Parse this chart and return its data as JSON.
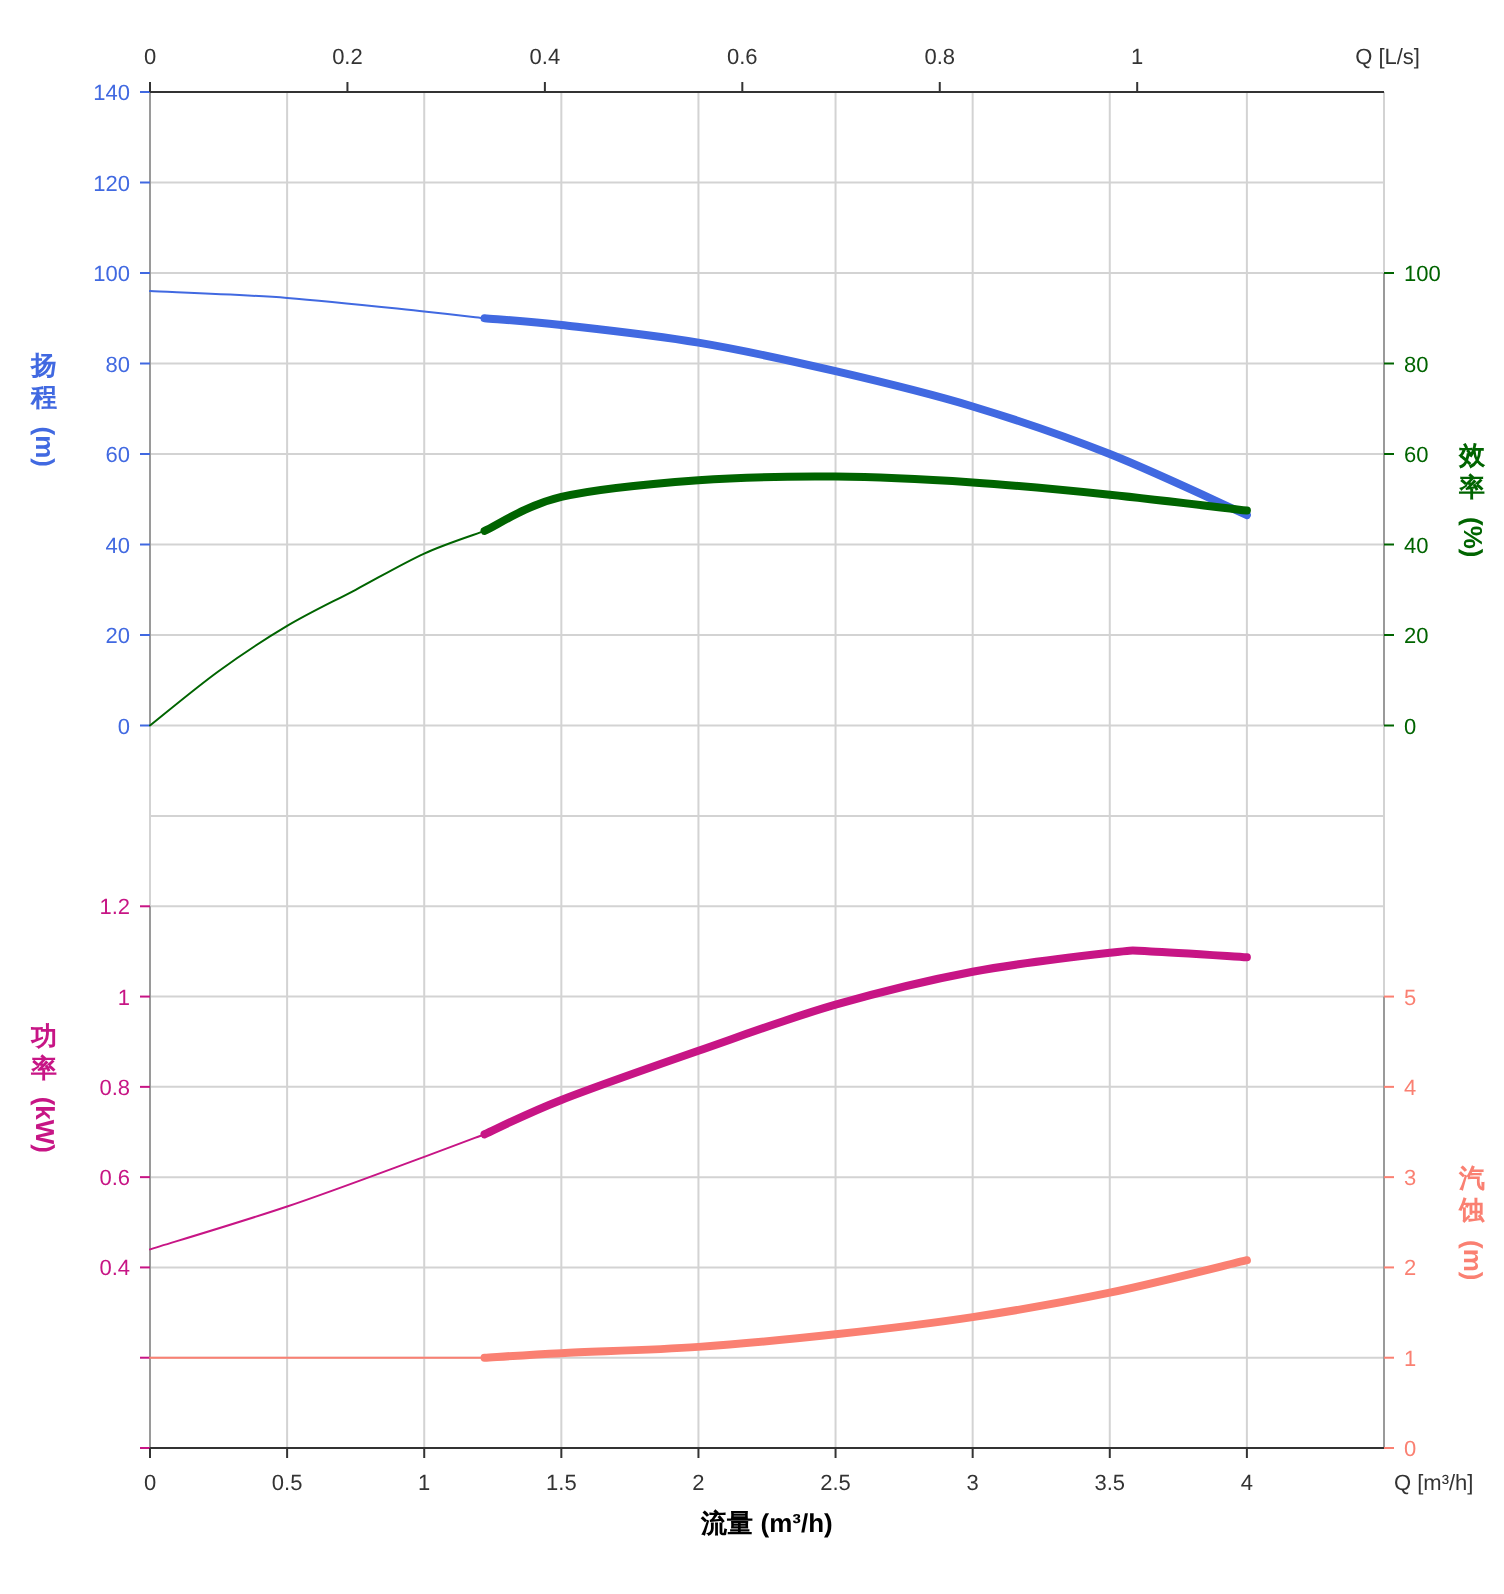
{
  "chart_data": [
    {
      "type": "line",
      "ylabel": "扬程 (m)",
      "y2label": "效率 (%)",
      "x2label": "Q [L/s]",
      "xlim": [
        0,
        4.5
      ],
      "xticks": [
        0,
        0.5,
        1,
        1.5,
        2,
        2.5,
        3,
        3.5,
        4
      ],
      "x2lim": [
        0,
        1.25
      ],
      "x2ticks": [
        0,
        0.2,
        0.4,
        0.6,
        0.8,
        1
      ],
      "ylim": [
        -20,
        140
      ],
      "yticks": [
        0,
        20,
        40,
        60,
        80,
        100,
        120,
        140
      ],
      "y2lim": [
        -20,
        140
      ],
      "y2ticks": [
        0,
        20,
        40,
        60,
        80,
        100
      ],
      "grid": true,
      "tick_labels": "y",
      "series": [
        {
          "color": "#4169e1",
          "x": [
            0,
            0.5,
            1,
            1.22
          ],
          "values": [
            96,
            94.5,
            91.5,
            90
          ]
        },
        {
          "color": "#4169e1",
          "x": [
            1.22,
            1.5,
            2,
            2.5,
            3,
            3.5,
            4
          ],
          "values": [
            90,
            88.5,
            84.6,
            78.3,
            70.5,
            60,
            46.5
          ]
        },
        {
          "color": "#006400",
          "axis": "y2",
          "x": [
            0,
            0.25,
            0.5,
            0.75,
            1,
            1.22
          ],
          "values": [
            0,
            12,
            22,
            30,
            38,
            43
          ]
        },
        {
          "color": "#006400",
          "axis": "y2",
          "x": [
            1.22,
            1.5,
            2,
            2.5,
            3,
            3.5,
            4
          ],
          "values": [
            43,
            50.5,
            54.2,
            55,
            53.7,
            51,
            47.5
          ]
        }
      ]
    },
    {
      "type": "line",
      "xlabel": "流量 (m³/h)",
      "ylabel": "功率 (kW)",
      "y2label": "汽蚀 (m)",
      "annotations": [
        "Q [m³/h]"
      ],
      "xlim": [
        0,
        4.5
      ],
      "xticks": [
        0,
        0.5,
        1,
        1.5,
        2,
        2.5,
        3,
        3.5,
        4
      ],
      "ylim": [
        0,
        1.4
      ],
      "yticks": [
        {
          "value": 0,
          "label": null
        },
        {
          "value": 0.2,
          "label": null
        },
        0.4,
        0.6,
        0.8,
        1,
        1.2
      ],
      "y2lim": [
        0,
        7
      ],
      "y2ticks": [
        0,
        1,
        2,
        3,
        4,
        5
      ],
      "grid": true,
      "series": [
        {
          "color": "#c71585",
          "x": [
            0,
            0.5,
            1,
            1.22
          ],
          "values": [
            0.44,
            0.535,
            0.645,
            0.695
          ]
        },
        {
          "color": "#c71585",
          "x": [
            1.22,
            1.5,
            2,
            2.5,
            3,
            3.5,
            3.65,
            4
          ],
          "values": [
            0.695,
            0.771,
            0.88,
            0.982,
            1.055,
            1.097,
            1.1,
            1.087
          ]
        },
        {
          "color": "#fa8072",
          "axis": "y2",
          "x": [
            0,
            0.5,
            1,
            1.22
          ],
          "values": [
            1,
            1,
            1,
            1
          ]
        },
        {
          "color": "#fa8072",
          "axis": "y2",
          "x": [
            1.22,
            1.5,
            2,
            2.5,
            3,
            3.5,
            4
          ],
          "values": [
            1,
            1.05,
            1.12,
            1.26,
            1.45,
            1.72,
            2.08
          ]
        }
      ]
    }
  ]
}
